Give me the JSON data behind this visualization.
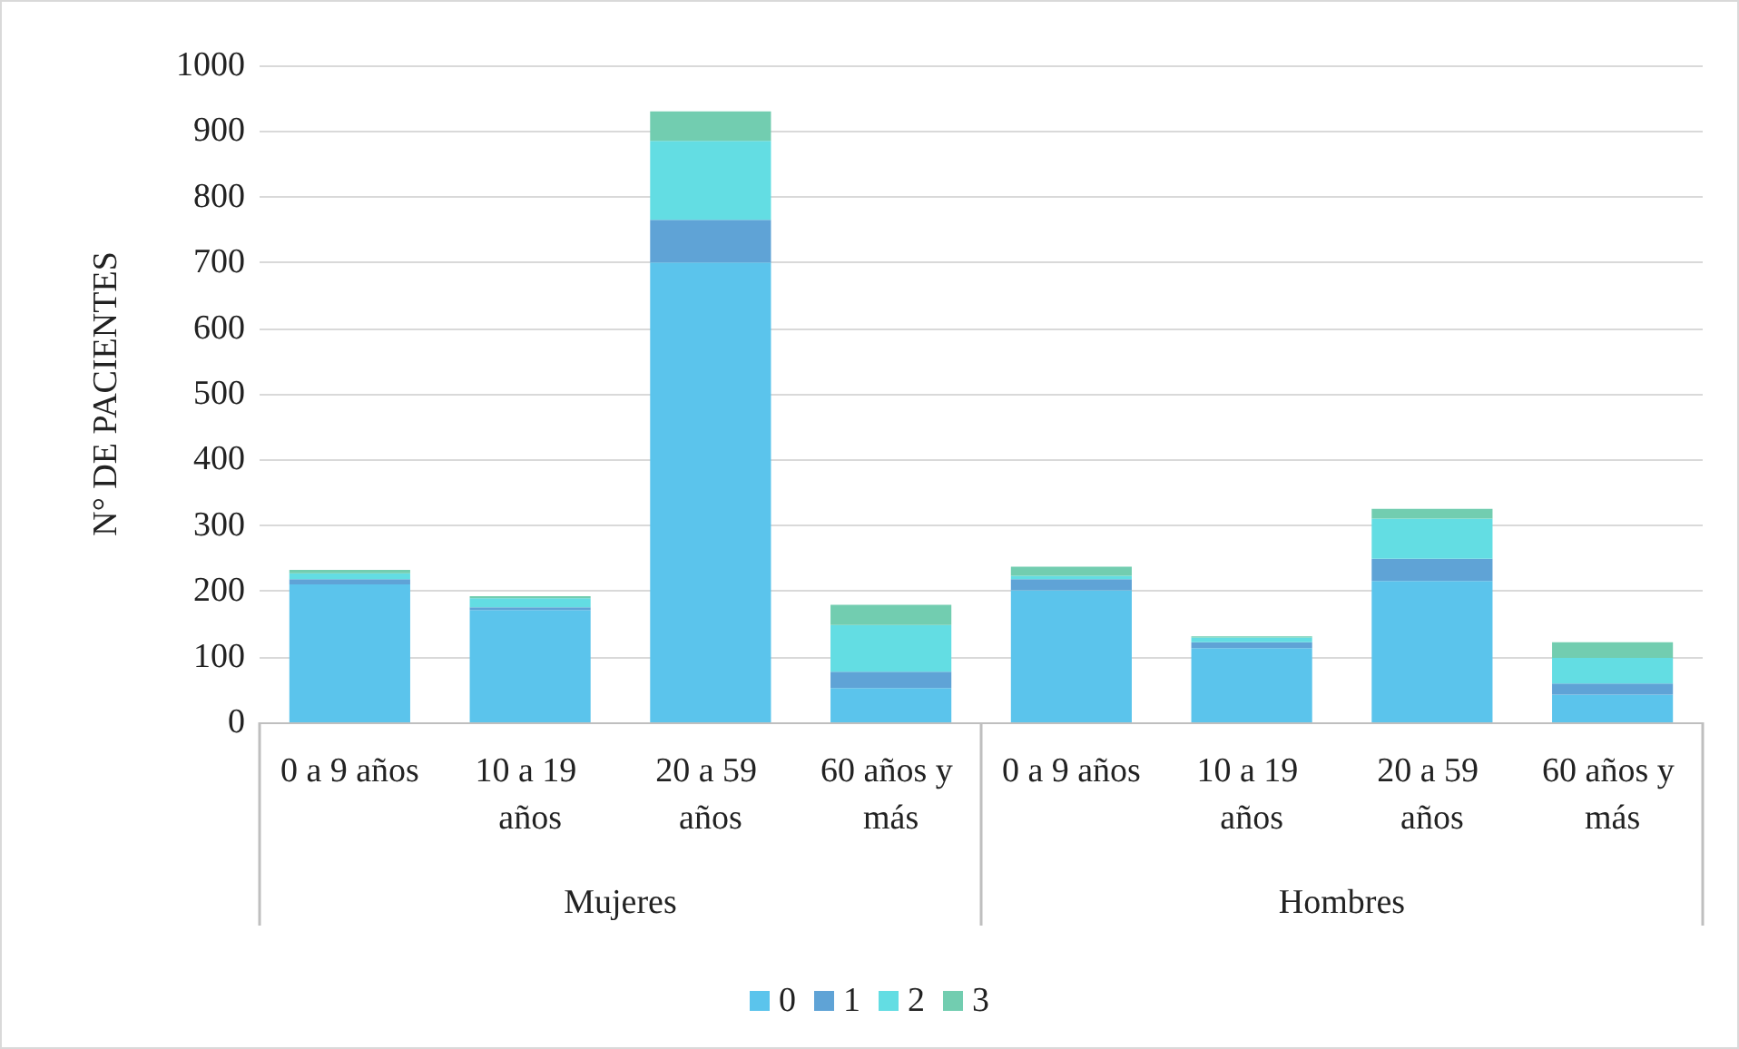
{
  "chart_data": {
    "type": "bar",
    "stacked": true,
    "ylabel": "N° DE PACIENTES",
    "categories": [
      "0 a 9 años",
      "10 a 19 años",
      "20 a 59 años",
      "60 años y más",
      "0 a 9 años",
      "10 a 19 años",
      "20 a 59 años",
      "60 años y más"
    ],
    "series": [
      {
        "name": "0",
        "color": "#5bc4ec",
        "values": [
          210,
          171,
          700,
          52,
          201,
          113,
          215,
          42
        ]
      },
      {
        "name": "1",
        "color": "#5fa3d6",
        "values": [
          8,
          4,
          65,
          25,
          17,
          9,
          34,
          17
        ]
      },
      {
        "name": "2",
        "color": "#63dde3",
        "values": [
          9,
          14,
          120,
          71,
          5,
          7,
          61,
          39
        ]
      },
      {
        "name": "3",
        "color": "#72cdb0",
        "values": [
          5,
          3,
          45,
          31,
          14,
          2,
          15,
          24
        ]
      }
    ],
    "annotations": [
      "Mujeres",
      "Hombres"
    ],
    "ylim": [
      0,
      1000
    ],
    "yticks": [
      0,
      100,
      200,
      300,
      400,
      500,
      600,
      700,
      800,
      900,
      1000
    ],
    "grid": "y",
    "legend": "bottom"
  }
}
